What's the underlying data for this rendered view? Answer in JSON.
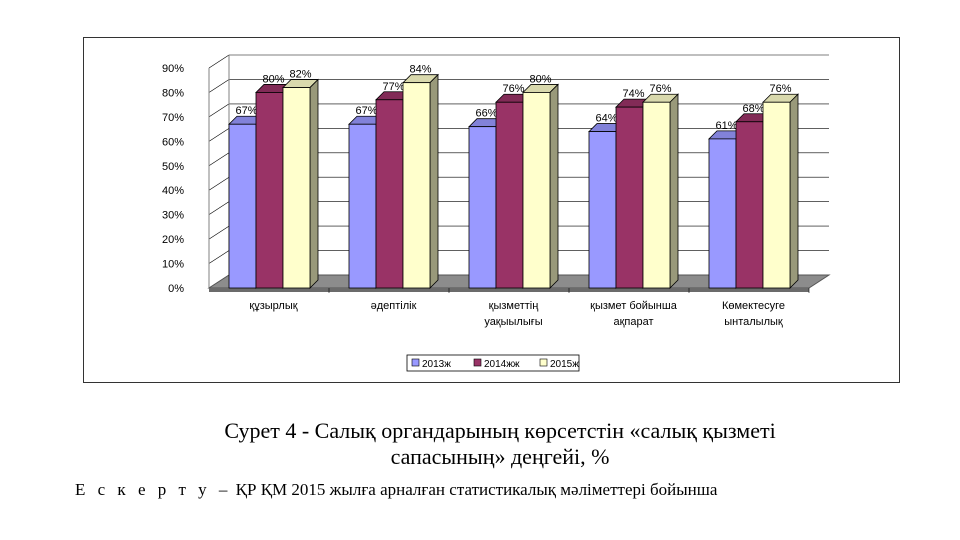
{
  "chart_data": {
    "type": "bar",
    "categories": [
      [
        "құзырлық"
      ],
      [
        "әдептілік"
      ],
      [
        "қызметтің",
        "уақыылығы"
      ],
      [
        "қызмет бойынша",
        "ақпарат"
      ],
      [
        "Көмектесуге",
        "ынталылық"
      ]
    ],
    "series": [
      {
        "name": "2013ж",
        "values": [
          67,
          67,
          66,
          64,
          61
        ],
        "color": "#9999ff"
      },
      {
        "name": "2014жж",
        "values": [
          80,
          77,
          76,
          74,
          68
        ],
        "color": "#993366"
      },
      {
        "name": "2015ж",
        "values": [
          82,
          84,
          80,
          76,
          76
        ],
        "color": "#ffffcc"
      }
    ],
    "data_labels": [
      [
        "67%",
        "67%",
        "66%",
        "64%",
        "61%"
      ],
      [
        "80%",
        "77%",
        "76%",
        "74%",
        "68%"
      ],
      [
        "82%",
        "84%",
        "80%",
        "76%",
        "76%"
      ]
    ],
    "yticks": [
      "0%",
      "10%",
      "20%",
      "30%",
      "40%",
      "50%",
      "60%",
      "70%",
      "80%",
      "90%"
    ],
    "ylim": [
      0,
      90
    ],
    "grid": true,
    "legend_position": "bottom"
  },
  "caption": {
    "line1": "Сурет  4 - Салық органдарының көрсетстін «салық қызметі",
    "line2": "сапасының» деңгейі, %"
  },
  "note": {
    "label": "Е с к е р т у –",
    "text": " ҚР ҚМ 2015 жылға арналған статистикалық мәліметтері бойынша"
  }
}
